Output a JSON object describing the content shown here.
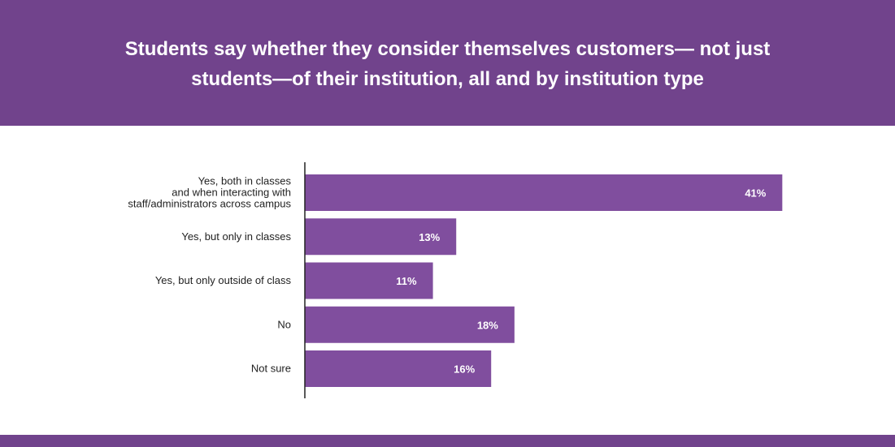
{
  "header": {
    "title": "Students say whether they consider themselves customers— not just students—of their institution, all and by institution type"
  },
  "colors": {
    "header_bg": "#71438c",
    "bar": "#804e9e",
    "axis": "#222222",
    "value_text": "#ffffff"
  },
  "chart_data": {
    "type": "bar",
    "orientation": "horizontal",
    "title": "Students say whether they consider themselves customers— not just students—of their institution, all and by institution type",
    "categories": [
      [
        "Yes, both in classes",
        "and when interacting with",
        "staff/administrators across campus"
      ],
      [
        "Yes, but only in classes"
      ],
      [
        "Yes, but only outside of class"
      ],
      [
        "No"
      ],
      [
        "Not sure"
      ]
    ],
    "values": [
      41,
      13,
      11,
      18,
      16
    ],
    "value_labels": [
      "41%",
      "13%",
      "11%",
      "18%",
      "16%"
    ],
    "xlim": [
      0,
      43
    ],
    "grid": false,
    "legend": "none"
  }
}
